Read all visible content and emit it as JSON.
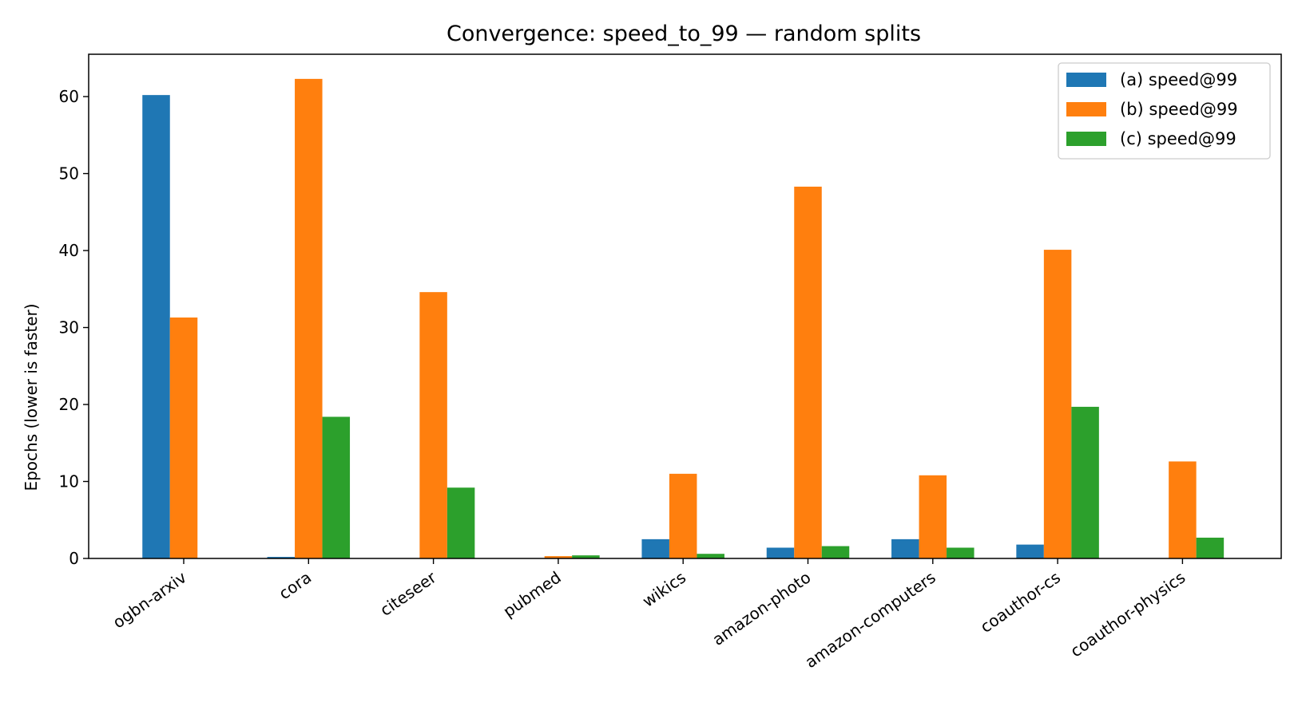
{
  "chart_data": {
    "type": "bar",
    "title": "Convergence: speed_to_99 — random splits",
    "xlabel": "",
    "ylabel": "Epochs (lower is faster)",
    "ylim": [
      0,
      65.5
    ],
    "yticks": [
      0,
      10,
      20,
      30,
      40,
      50,
      60
    ],
    "grid": false,
    "legend_position": "top-right",
    "categories": [
      "ogbn-arxiv",
      "cora",
      "citeseer",
      "pubmed",
      "wikics",
      "amazon-photo",
      "amazon-computers",
      "coauthor-cs",
      "coauthor-physics"
    ],
    "series": [
      {
        "name": "(a) speed@99",
        "color": "#1f77b4",
        "values": [
          60.2,
          0.2,
          0,
          0,
          2.5,
          1.4,
          2.5,
          1.8,
          0
        ]
      },
      {
        "name": "(b) speed@99",
        "color": "#ff7f0e",
        "values": [
          31.3,
          62.3,
          34.6,
          0.3,
          11.0,
          48.3,
          10.8,
          40.1,
          12.6
        ]
      },
      {
        "name": "(c) speed@99",
        "color": "#2ca02c",
        "values": [
          0,
          18.4,
          9.2,
          0.4,
          0.6,
          1.6,
          1.4,
          19.7,
          2.7
        ]
      }
    ]
  }
}
